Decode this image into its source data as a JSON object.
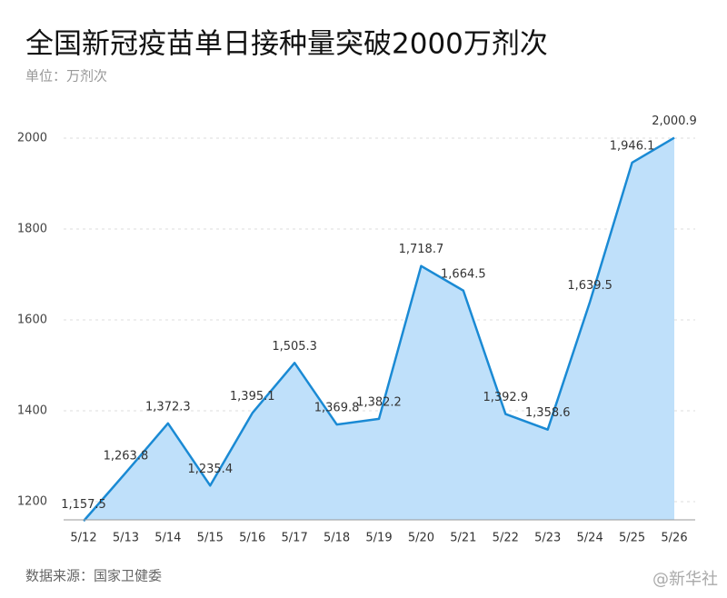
{
  "chart_data": {
    "type": "area",
    "title": "全国新冠疫苗单日接种量突破2000万剂次",
    "subtitle": "单位：万剂次",
    "source": "数据来源：国家卫健委",
    "watermark": "@新华社",
    "categories": [
      "5/12",
      "5/13",
      "5/14",
      "5/15",
      "5/16",
      "5/17",
      "5/18",
      "5/19",
      "5/20",
      "5/21",
      "5/22",
      "5/23",
      "5/24",
      "5/25",
      "5/26"
    ],
    "values": [
      1157.5,
      1263.8,
      1372.3,
      1235.4,
      1395.1,
      1505.3,
      1369.8,
      1382.2,
      1718.7,
      1664.5,
      1392.9,
      1358.6,
      1639.5,
      1946.1,
      2000.9
    ],
    "value_labels": [
      "1,157.5",
      "1,263.8",
      "1,372.3",
      "1,235.4",
      "1,395.1",
      "1,505.3",
      "1,369.8",
      "1,382.2",
      "1,718.7",
      "1,664.5",
      "1,392.9",
      "1,358.6",
      "1,639.5",
      "1,946.1",
      "2,000.9"
    ],
    "color": "#1a8ad4",
    "fill": "#bfe0fa",
    "ylim": [
      1160,
      2060
    ],
    "yticks": [
      1200,
      1400,
      1600,
      1800,
      2000
    ],
    "grid": true
  }
}
